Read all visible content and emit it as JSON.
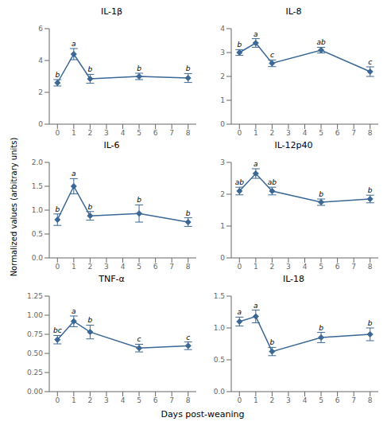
{
  "xlabel": "Days post-weaning",
  "ylabel": "Normalized values  (arbitrary units)",
  "chart_data": [
    {
      "type": "line",
      "title": "IL-1β",
      "x": [
        0,
        1,
        2,
        5,
        8
      ],
      "values": [
        2.6,
        4.4,
        2.85,
        3.0,
        2.9
      ],
      "yerr": [
        0.2,
        0.35,
        0.28,
        0.2,
        0.28
      ],
      "annotations": [
        "b",
        "a",
        "b",
        "b",
        "b"
      ],
      "color": "#3a6795",
      "marker": "diamond",
      "grid": false,
      "xlim": [
        -0.5,
        8.5
      ],
      "xticks": [
        0,
        1,
        2,
        3,
        4,
        5,
        6,
        7,
        8
      ],
      "ylim": [
        0,
        6
      ],
      "yticks": [
        0,
        2,
        4,
        6
      ]
    },
    {
      "type": "line",
      "title": "IL-8",
      "x": [
        0,
        1,
        2,
        5,
        8
      ],
      "values": [
        3.0,
        3.4,
        2.55,
        3.1,
        2.2
      ],
      "yerr": [
        0.12,
        0.18,
        0.14,
        0.12,
        0.2
      ],
      "annotations": [
        "b",
        "a",
        "c",
        "ab",
        "c"
      ],
      "color": "#3a6795",
      "marker": "diamond",
      "grid": false,
      "xlim": [
        -0.5,
        8.5
      ],
      "xticks": [
        0,
        1,
        2,
        3,
        4,
        5,
        6,
        7,
        8
      ],
      "ylim": [
        0,
        4
      ],
      "yticks": [
        0,
        1,
        2,
        3,
        4
      ]
    },
    {
      "type": "line",
      "title": "IL-6",
      "x": [
        0,
        1,
        2,
        5,
        8
      ],
      "values": [
        0.8,
        1.5,
        0.88,
        0.93,
        0.75
      ],
      "yerr": [
        0.12,
        0.16,
        0.09,
        0.18,
        0.09
      ],
      "annotations": [
        "b",
        "a",
        "b",
        "b",
        "b"
      ],
      "color": "#3a6795",
      "marker": "diamond",
      "grid": false,
      "xlim": [
        -0.5,
        8.5
      ],
      "xticks": [
        0,
        1,
        2,
        3,
        4,
        5,
        6,
        7,
        8
      ],
      "ylim": [
        0,
        2.0
      ],
      "yticks": [
        {
          "value": 0,
          "label": "0.0"
        },
        0.5,
        {
          "value": 1,
          "label": "1.0"
        },
        1.5,
        {
          "value": 2,
          "label": "2.0"
        }
      ]
    },
    {
      "type": "line",
      "title": "IL-12p40",
      "x": [
        0,
        1,
        2,
        5,
        8
      ],
      "values": [
        2.1,
        2.65,
        2.1,
        1.75,
        1.85
      ],
      "yerr": [
        0.12,
        0.15,
        0.12,
        0.1,
        0.12
      ],
      "annotations": [
        "ab",
        "a",
        "ab",
        "b",
        "b"
      ],
      "color": "#3a6795",
      "marker": "diamond",
      "grid": false,
      "xlim": [
        -0.5,
        8.5
      ],
      "xticks": [
        0,
        1,
        2,
        3,
        4,
        5,
        6,
        7,
        8
      ],
      "ylim": [
        0,
        3
      ],
      "yticks": [
        0,
        1,
        2,
        3
      ]
    },
    {
      "type": "line",
      "title": "TNF-α",
      "x": [
        0,
        1,
        2,
        5,
        8
      ],
      "values": [
        0.68,
        0.92,
        0.78,
        0.57,
        0.6
      ],
      "yerr": [
        0.055,
        0.07,
        0.09,
        0.05,
        0.05
      ],
      "annotations": [
        "bc",
        "a",
        "b",
        "c",
        "c"
      ],
      "color": "#3a6795",
      "marker": "diamond",
      "grid": false,
      "xlim": [
        -0.5,
        8.5
      ],
      "xticks": [
        0,
        1,
        2,
        3,
        4,
        5,
        6,
        7,
        8
      ],
      "ylim": [
        0,
        1.25
      ],
      "yticks": [
        {
          "value": 0,
          "label": "0.00"
        },
        0.25,
        {
          "value": 0.5,
          "label": "0.50"
        },
        0.75,
        {
          "value": 1,
          "label": "1.00"
        },
        1.25
      ]
    },
    {
      "type": "line",
      "title": "IL-18",
      "x": [
        0,
        1,
        2,
        5,
        8
      ],
      "values": [
        1.1,
        1.18,
        0.63,
        0.85,
        0.9
      ],
      "yerr": [
        0.07,
        0.1,
        0.065,
        0.08,
        0.1
      ],
      "annotations": [
        "a",
        "a",
        "b",
        "b",
        "b"
      ],
      "color": "#3a6795",
      "marker": "diamond",
      "grid": false,
      "xlim": [
        -0.5,
        8.5
      ],
      "xticks": [
        0,
        1,
        2,
        3,
        4,
        5,
        6,
        7,
        8
      ],
      "ylim": [
        0,
        1.5
      ],
      "yticks": [
        {
          "value": 0,
          "label": "0.0"
        },
        0.5,
        {
          "value": 1,
          "label": "1.0"
        },
        1.5
      ]
    }
  ]
}
